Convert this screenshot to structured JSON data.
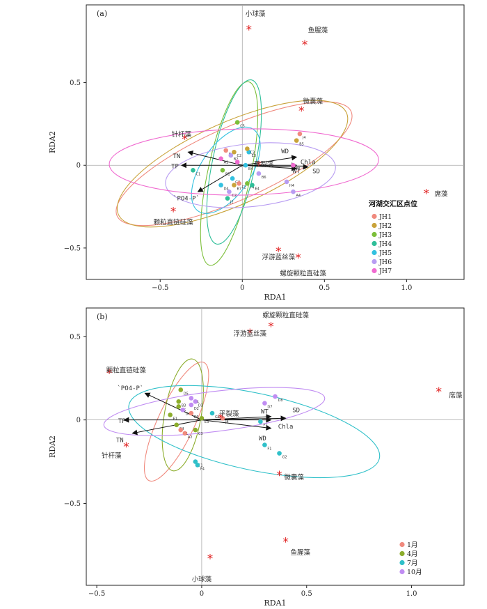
{
  "chart_data": [
    {
      "type": "scatter",
      "panel": "(a)",
      "xlabel": "RDA1",
      "ylabel": "RDA2",
      "xlim": [
        -0.95,
        1.35
      ],
      "ylim": [
        -0.69,
        0.97
      ],
      "xticks": [
        -0.5,
        0,
        0.5,
        1.0
      ],
      "xtick_labels": [
        "−0.5",
        "0",
        "0.5",
        "1.0"
      ],
      "yticks": [
        -0.5,
        0,
        0.5
      ],
      "ytick_labels": [
        "−0.5",
        "0",
        "0.5"
      ],
      "legend_title": "河湖交汇区点位",
      "legend_position": "right",
      "species": [
        {
          "label": "小球藻",
          "x": 0.04,
          "y": 0.82,
          "lx": 0.08,
          "ly": 0.92
        },
        {
          "label": "鱼腥藻",
          "x": 0.38,
          "y": 0.73,
          "lx": 0.46,
          "ly": 0.82
        },
        {
          "label": "微囊藻",
          "x": 0.36,
          "y": 0.33,
          "lx": 0.43,
          "ly": 0.39
        },
        {
          "label": "针杆藻",
          "x": -0.35,
          "y": 0.16,
          "lx": -0.37,
          "ly": 0.19
        },
        {
          "label": "席藻",
          "x": 1.12,
          "y": -0.17,
          "lx": 1.21,
          "ly": -0.17
        },
        {
          "label": "颗粒直链硅藻",
          "x": -0.42,
          "y": -0.28,
          "lx": -0.42,
          "ly": -0.34
        },
        {
          "label": "浮游蓝丝藻",
          "x": 0.22,
          "y": -0.52,
          "lx": 0.22,
          "ly": -0.55
        },
        {
          "label": "螺旋颗粒直硅藻",
          "x": 0.34,
          "y": -0.56,
          "lx": 0.37,
          "ly": -0.65
        },
        {
          "label": "平裂藻",
          "x": 0.1,
          "y": -0.0,
          "lx": 0.13,
          "ly": 0.01
        }
      ],
      "env_vectors": [
        {
          "label": "WD",
          "x": 0.33,
          "y": 0.05,
          "lx": 0.26,
          "ly": 0.085
        },
        {
          "label": "Chla",
          "x": 0.33,
          "y": 0.0,
          "lx": 0.4,
          "ly": 0.02
        },
        {
          "label": "WT",
          "x": 0.33,
          "y": -0.02,
          "lx": 0.33,
          "ly": -0.035
        },
        {
          "label": "SD",
          "x": 0.4,
          "y": -0.01,
          "lx": 0.45,
          "ly": -0.035
        },
        {
          "label": "TN",
          "x": -0.33,
          "y": 0.08,
          "lx": -0.4,
          "ly": 0.055
        },
        {
          "label": "TP",
          "x": -0.37,
          "y": 0.0,
          "lx": -0.41,
          "ly": -0.005
        },
        {
          "label": "`PO4-P`",
          "x": -0.27,
          "y": -0.16,
          "lx": -0.34,
          "ly": -0.2
        }
      ],
      "series": [
        {
          "name": "JH1",
          "color": "#f08a7e"
        },
        {
          "name": "JH2",
          "color": "#c9a33a"
        },
        {
          "name": "JH3",
          "color": "#7cbf3a"
        },
        {
          "name": "JH4",
          "color": "#2fbf99"
        },
        {
          "name": "JH5",
          "color": "#33c1e0"
        },
        {
          "name": "JH6",
          "color": "#b89cf2"
        },
        {
          "name": "JH7",
          "color": "#f06ad0"
        }
      ],
      "points": [
        {
          "x": 0.35,
          "y": 0.19,
          "c": 0,
          "l": "J4"
        },
        {
          "x": 0.33,
          "y": 0.15,
          "c": 1,
          "l": "B5"
        },
        {
          "x": -0.1,
          "y": 0.09,
          "c": 0,
          "l": "D2"
        },
        {
          "x": -0.05,
          "y": 0.08,
          "c": 1,
          "l": "C2"
        },
        {
          "x": 0.04,
          "y": 0.08,
          "c": 4,
          "l": "E3"
        },
        {
          "x": 0.03,
          "y": 0.1,
          "c": 1,
          "l": "C3"
        },
        {
          "x": -0.03,
          "y": 0.26,
          "c": 2,
          "l": "C5"
        },
        {
          "x": -0.07,
          "y": 0.06,
          "c": 5,
          "l": "B2"
        },
        {
          "x": -0.13,
          "y": 0.04,
          "c": 6,
          "l": "A1"
        },
        {
          "x": -0.12,
          "y": -0.03,
          "c": 2,
          "l": "B1"
        },
        {
          "x": -0.3,
          "y": -0.03,
          "c": 3,
          "l": "C1"
        },
        {
          "x": -0.03,
          "y": 0.02,
          "c": 6,
          "l": "B6"
        },
        {
          "x": 0.02,
          "y": 0.0,
          "c": 4,
          "l": "B4"
        },
        {
          "x": 0.1,
          "y": -0.05,
          "c": 5,
          "l": "B6"
        },
        {
          "x": -0.06,
          "y": -0.08,
          "c": 4,
          "l": "G2"
        },
        {
          "x": -0.05,
          "y": -0.12,
          "c": 1,
          "l": "B7"
        },
        {
          "x": -0.02,
          "y": -0.11,
          "c": 0,
          "l": "F2"
        },
        {
          "x": 0.03,
          "y": -0.11,
          "c": 2,
          "l": "F4"
        },
        {
          "x": 0.06,
          "y": -0.12,
          "c": 3,
          "l": "E4"
        },
        {
          "x": -0.13,
          "y": -0.12,
          "c": 4,
          "l": "D4"
        },
        {
          "x": -0.08,
          "y": -0.16,
          "c": 5,
          "l": "C2"
        },
        {
          "x": 0.27,
          "y": -0.1,
          "c": 5,
          "l": "H4"
        },
        {
          "x": 0.31,
          "y": 0.0,
          "c": 6,
          "l": "F6"
        },
        {
          "x": 0.31,
          "y": -0.16,
          "c": 5,
          "l": "A4"
        },
        {
          "x": -0.09,
          "y": -0.2,
          "c": 3,
          "l": "J2"
        }
      ],
      "ellipses": [
        {
          "c": 0,
          "cx": -0.05,
          "cy": 0.01,
          "rx": 0.78,
          "ry": 0.22,
          "rot": -24
        },
        {
          "c": 1,
          "cx": -0.06,
          "cy": 0.01,
          "rx": 0.76,
          "ry": 0.25,
          "rot": -24
        },
        {
          "c": 2,
          "cx": -0.08,
          "cy": -0.05,
          "rx": 0.57,
          "ry": 0.13,
          "rot": -78
        },
        {
          "c": 3,
          "cx": -0.05,
          "cy": 0.02,
          "rx": 0.51,
          "ry": 0.13,
          "rot": -78
        },
        {
          "c": 4,
          "cx": -0.1,
          "cy": -0.03,
          "rx": 0.3,
          "ry": 0.15,
          "rot": -56
        },
        {
          "c": 5,
          "cx": 0.05,
          "cy": -0.06,
          "rx": 0.52,
          "ry": 0.19,
          "rot": -6
        },
        {
          "c": 6,
          "cx": 0.01,
          "cy": 0.02,
          "rx": 0.82,
          "ry": 0.2,
          "rot": -1
        }
      ]
    },
    {
      "type": "scatter",
      "panel": "(b)",
      "xlabel": "RDA1",
      "ylabel": "RDA2",
      "xlim": [
        -0.55,
        1.25
      ],
      "ylim": [
        -0.99,
        0.67
      ],
      "xticks": [
        -0.5,
        0,
        0.5,
        1.0
      ],
      "xtick_labels": [
        "−0.5",
        "0",
        "0.5",
        "1.0"
      ],
      "yticks": [
        -0.5,
        0,
        0.5
      ],
      "ytick_labels": [
        "−0.5",
        "0",
        "0.5"
      ],
      "legend_position": "bottom-right",
      "species": [
        {
          "label": "螺旋颗粒直硅藻",
          "x": 0.33,
          "y": 0.56,
          "lx": 0.4,
          "ly": 0.63
        },
        {
          "label": "浮游蓝丝藻",
          "x": 0.23,
          "y": 0.52,
          "lx": 0.23,
          "ly": 0.52
        },
        {
          "label": "颗粒直链硅藻",
          "x": -0.44,
          "y": 0.28,
          "lx": -0.36,
          "ly": 0.3
        },
        {
          "label": "席藻",
          "x": 1.13,
          "y": 0.17,
          "lx": 1.21,
          "ly": 0.15
        },
        {
          "label": "平裂藻",
          "x": 0.09,
          "y": 0.01,
          "lx": 0.13,
          "ly": 0.04
        },
        {
          "label": "针杆藻",
          "x": -0.36,
          "y": -0.16,
          "lx": -0.43,
          "ly": -0.21
        },
        {
          "label": "微囊藻",
          "x": 0.37,
          "y": -0.33,
          "lx": 0.44,
          "ly": -0.34
        },
        {
          "label": "鱼腥藻",
          "x": 0.4,
          "y": -0.73,
          "lx": 0.47,
          "ly": -0.79
        },
        {
          "label": "小球藻",
          "x": 0.04,
          "y": -0.83,
          "lx": 0.0,
          "ly": -0.95
        }
      ],
      "env_vectors": [
        {
          "label": "`PO4-P`",
          "x": -0.27,
          "y": 0.16,
          "lx": -0.34,
          "ly": 0.19
        },
        {
          "label": "TP",
          "x": -0.37,
          "y": 0.0,
          "lx": -0.38,
          "ly": -0.005
        },
        {
          "label": "TN",
          "x": -0.33,
          "y": -0.08,
          "lx": -0.39,
          "ly": -0.12
        },
        {
          "label": "WT",
          "x": 0.33,
          "y": 0.02,
          "lx": 0.3,
          "ly": 0.05
        },
        {
          "label": "SD",
          "x": 0.4,
          "y": 0.01,
          "lx": 0.45,
          "ly": 0.06
        },
        {
          "label": "Chla",
          "x": 0.33,
          "y": 0.0,
          "lx": 0.4,
          "ly": -0.04
        },
        {
          "label": "WD",
          "x": 0.33,
          "y": -0.05,
          "lx": 0.29,
          "ly": -0.11
        }
      ],
      "series": [
        {
          "name": "1月",
          "color": "#f08a7e"
        },
        {
          "name": "4月",
          "color": "#8cad2c"
        },
        {
          "name": "7月",
          "color": "#2fc0c9"
        },
        {
          "name": "10月",
          "color": "#c08cf2"
        }
      ],
      "points": [
        {
          "x": -0.1,
          "y": 0.18,
          "c": 1,
          "l": "D5"
        },
        {
          "x": -0.05,
          "y": 0.13,
          "c": 3,
          "l": "D4"
        },
        {
          "x": -0.03,
          "y": 0.11,
          "c": 3,
          "l": "D3"
        },
        {
          "x": -0.11,
          "y": 0.11,
          "c": 1,
          "l": "B3"
        },
        {
          "x": -0.11,
          "y": 0.08,
          "c": 1,
          "l": "B5"
        },
        {
          "x": -0.05,
          "y": 0.09,
          "c": 3,
          "l": "D2"
        },
        {
          "x": -0.09,
          "y": 0.06,
          "c": 3,
          "l": "D6"
        },
        {
          "x": -0.15,
          "y": 0.03,
          "c": 1,
          "l": "E1"
        },
        {
          "x": -0.05,
          "y": 0.04,
          "c": 0,
          "l": "B6"
        },
        {
          "x": 0.0,
          "y": 0.01,
          "c": 1,
          "l": "E3"
        },
        {
          "x": -0.12,
          "y": -0.03,
          "c": 1,
          "l": "C4"
        },
        {
          "x": -0.1,
          "y": -0.06,
          "c": 0,
          "l": "A1"
        },
        {
          "x": -0.08,
          "y": -0.08,
          "c": 0,
          "l": "A2"
        },
        {
          "x": -0.03,
          "y": -0.06,
          "c": 1,
          "l": "C3"
        },
        {
          "x": 0.05,
          "y": 0.04,
          "c": 2,
          "l": "G6"
        },
        {
          "x": 0.1,
          "y": 0.01,
          "c": 0,
          "l": "J4"
        },
        {
          "x": 0.3,
          "y": 0.1,
          "c": 3,
          "l": "D7"
        },
        {
          "x": 0.35,
          "y": 0.14,
          "c": 3,
          "l": "D8"
        },
        {
          "x": 0.28,
          "y": -0.01,
          "c": 2,
          "l": "F1"
        },
        {
          "x": 0.3,
          "y": -0.15,
          "c": 2,
          "l": "F1"
        },
        {
          "x": 0.37,
          "y": -0.2,
          "c": 2,
          "l": "G2"
        },
        {
          "x": -0.03,
          "y": -0.25,
          "c": 2,
          "l": "C1"
        },
        {
          "x": -0.02,
          "y": -0.27,
          "c": 2,
          "l": "F4"
        }
      ],
      "ellipses": [
        {
          "c": 0,
          "cx": -0.12,
          "cy": -0.01,
          "rx": 0.31,
          "ry": 0.11,
          "rot": -65
        },
        {
          "c": 1,
          "cx": -0.09,
          "cy": 0.03,
          "rx": 0.27,
          "ry": 0.11,
          "rot": -80
        },
        {
          "c": 2,
          "cx": 0.25,
          "cy": -0.07,
          "rx": 0.61,
          "ry": 0.23,
          "rot": 12
        },
        {
          "c": 3,
          "cx": 0.06,
          "cy": 0.05,
          "rx": 0.53,
          "ry": 0.12,
          "rot": -7
        }
      ]
    }
  ]
}
